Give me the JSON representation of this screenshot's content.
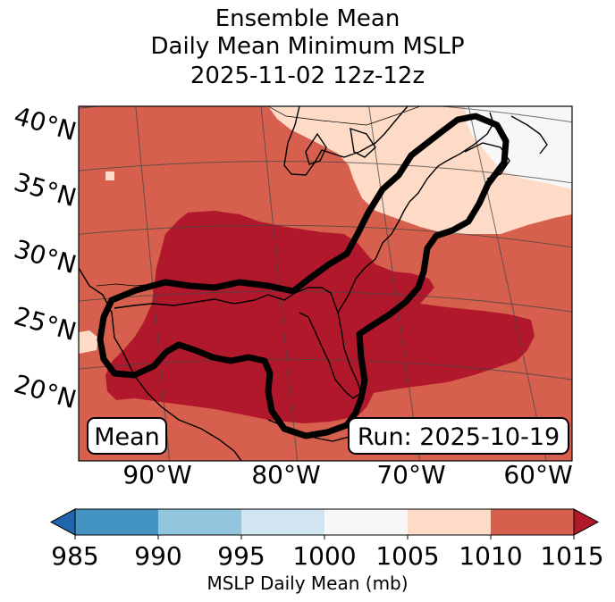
{
  "title": {
    "line1": "Ensemble Mean",
    "line2": "Daily Mean Minimum MSLP",
    "line3": "2025-11-02 12z-12z"
  },
  "map": {
    "lat_labels": [
      "40°N",
      "35°N",
      "30°N",
      "25°N",
      "20°N"
    ],
    "lon_labels": [
      "90°W",
      "80°W",
      "70°W",
      "60°W"
    ],
    "mean_label": "Mean",
    "run_label": "Run: 2025-10-19",
    "lat_range": [
      15,
      42
    ],
    "lon_range": [
      -97,
      -58
    ]
  },
  "colorbar": {
    "label": "MSLP Daily Mean (mb)",
    "ticks": [
      "985",
      "990",
      "995",
      "1000",
      "1005",
      "1010",
      "1015"
    ],
    "bins": [
      {
        "from": 985,
        "to": 990,
        "color": "#4393c3"
      },
      {
        "from": 990,
        "to": 995,
        "color": "#92c5de"
      },
      {
        "from": 995,
        "to": 1000,
        "color": "#d1e5f0"
      },
      {
        "from": 1000,
        "to": 1005,
        "color": "#f7f7f7"
      },
      {
        "from": 1005,
        "to": 1010,
        "color": "#fddbc7"
      },
      {
        "from": 1010,
        "to": 1015,
        "color": "#d6604d"
      }
    ],
    "under_color": "#2166ac",
    "over_color": "#b2182b"
  },
  "colors": {
    "band_1015": "#b2182b",
    "band_1010": "#d6604d",
    "band_1005": "#fddbc7",
    "band_1000": "#f7f7f7",
    "contour": "#000000"
  }
}
